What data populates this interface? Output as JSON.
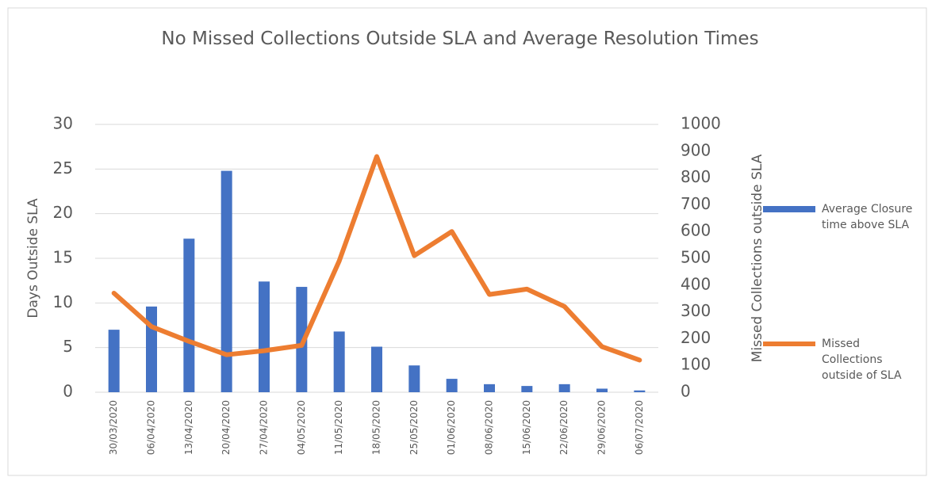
{
  "chart_data": {
    "type": "bar_line",
    "title": "No Missed Collections Outside SLA and Average Resolution Times",
    "categories": [
      "30/03/2020",
      "06/04/2020",
      "13/04/2020",
      "20/04/2020",
      "27/04/2020",
      "04/05/2020",
      "11/05/2020",
      "18/05/2020",
      "25/05/2020",
      "01/06/2020",
      "08/06/2020",
      "15/06/2020",
      "22/06/2020",
      "29/06/2020",
      "06/07/2020"
    ],
    "series": [
      {
        "name": "Average Closure time above SLA",
        "type": "bar",
        "color": "#4472c4",
        "values": [
          7.0,
          9.6,
          17.2,
          24.8,
          12.4,
          11.8,
          6.8,
          5.1,
          3.0,
          1.5,
          0.9,
          0.7,
          0.9,
          0.4,
          0.2
        ]
      },
      {
        "name": "Missed Collections outside of SLA",
        "type": "line",
        "axis": "y2",
        "color": "#ed7d31",
        "values": [
          370,
          245,
          190,
          140,
          155,
          175,
          490,
          880,
          510,
          600,
          365,
          385,
          320,
          170,
          120
        ]
      }
    ],
    "ylabel": "Days Outside SLA",
    "y2label": "Missed Collections outside SLA",
    "ylim": [
      0,
      30
    ],
    "yticks": [
      0,
      5,
      10,
      15,
      20,
      25,
      30
    ],
    "y2lim": [
      0,
      1000
    ],
    "y2ticks": [
      0,
      100,
      200,
      300,
      400,
      500,
      600,
      700,
      800,
      900,
      1000
    ],
    "grid": true,
    "legend": "right"
  }
}
